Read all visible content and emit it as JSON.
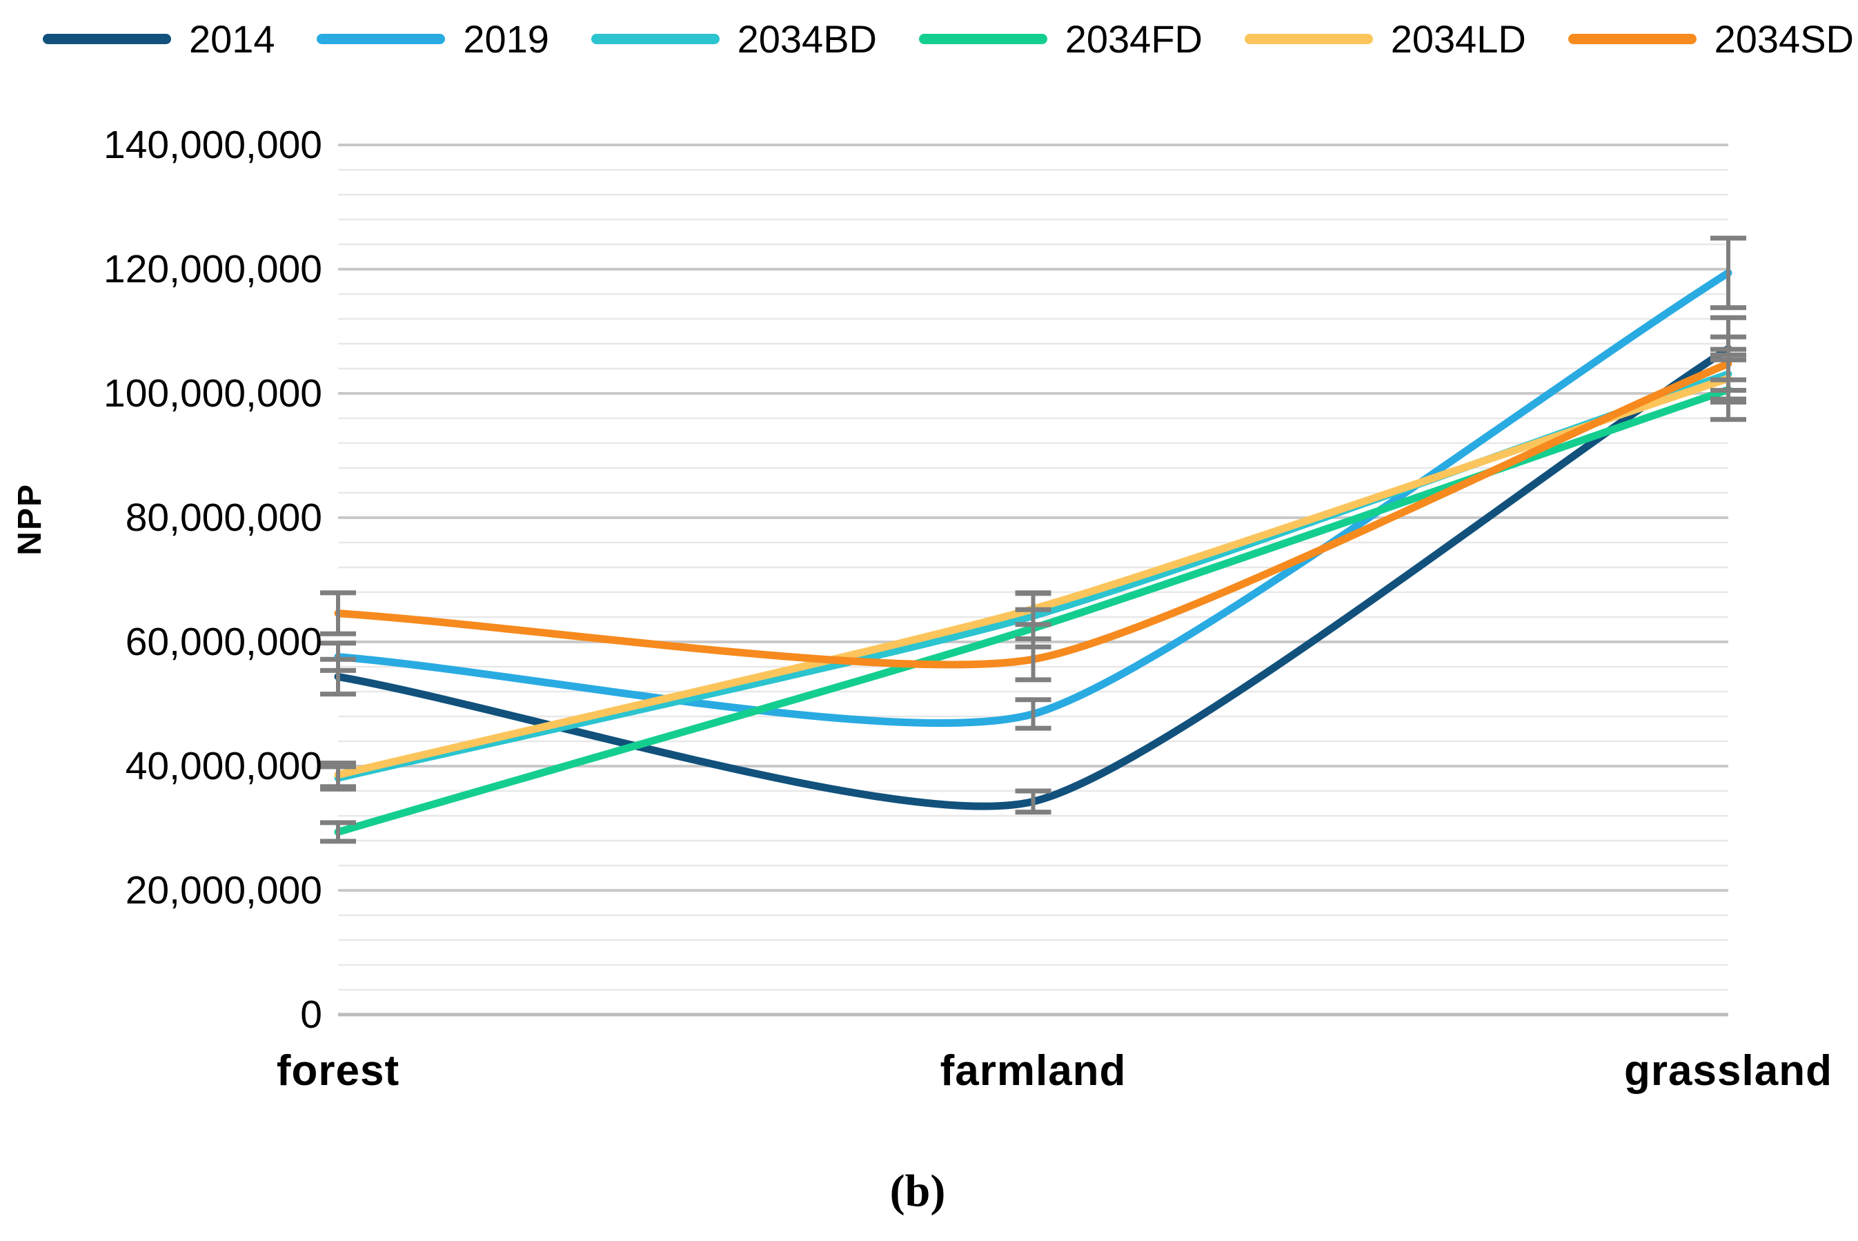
{
  "figure": {
    "ylabel": "NPP",
    "caption": "(b)"
  },
  "chart_data": {
    "type": "line",
    "title": "",
    "xlabel": "",
    "ylabel": "NPP",
    "categories": [
      "forest",
      "farmland",
      "grassland"
    ],
    "series": [
      {
        "name": "2014",
        "color": "#11517C",
        "values": [
          54400000,
          34300000,
          107200000
        ],
        "errors": [
          2800000,
          1700000,
          5000000
        ]
      },
      {
        "name": "2019",
        "color": "#29ABE2",
        "values": [
          57600000,
          48400000,
          119400000
        ],
        "errors": [
          2200000,
          2300000,
          5600000
        ]
      },
      {
        "name": "2034BD",
        "color": "#2BC4CF",
        "values": [
          38100000,
          64200000,
          103100000
        ],
        "errors": [
          1800000,
          3700000,
          4000000
        ]
      },
      {
        "name": "2034FD",
        "color": "#14CE90",
        "values": [
          29400000,
          62200000,
          100600000
        ],
        "errors": [
          1500000,
          3000000,
          4800000
        ]
      },
      {
        "name": "2034LD",
        "color": "#FBC55C",
        "values": [
          38600000,
          65300000,
          102400000
        ],
        "errors": [
          1900000,
          2500000,
          3800000
        ]
      },
      {
        "name": "2034SD",
        "color": "#F68A1E",
        "values": [
          64600000,
          57200000,
          104800000
        ],
        "errors": [
          3300000,
          3300000,
          4300000
        ]
      }
    ],
    "ylim": [
      0,
      140000000
    ],
    "y_major_step": 20000000,
    "y_minor_step": 4000000,
    "y_tick_labels": [
      "0",
      "20,000,000",
      "40,000,000",
      "60,000,000",
      "80,000,000",
      "100,000,000",
      "120,000,000",
      "140,000,000"
    ],
    "grid": true,
    "legend_position": "top",
    "smoothed_lines": true,
    "error_bars": true
  },
  "style_colors": {
    "major_grid": "#C9C9C9",
    "minor_grid": "#E8E8E8",
    "zero_line": "#BDBDBD",
    "error_bar": "#7F7F7F",
    "text": "#000000"
  }
}
